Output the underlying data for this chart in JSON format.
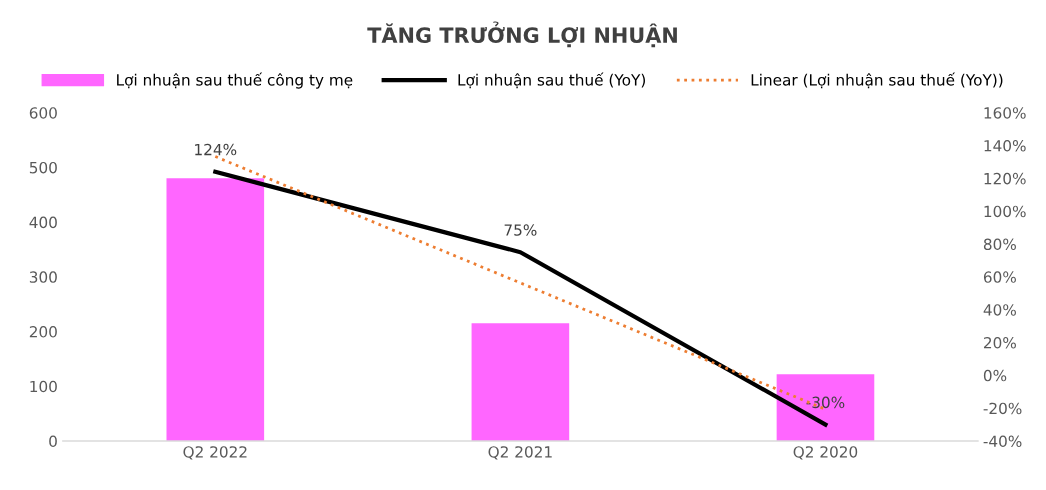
{
  "chart_data": {
    "type": "bar",
    "title": "TĂNG TRƯỞNG LỢI NHUẬN",
    "categories": [
      "Q2 2022",
      "Q2 2021",
      "Q2 2020"
    ],
    "series": [
      {
        "name": "Lợi nhuận sau thuế công ty mẹ",
        "color": "#ff66ff",
        "values": [
          480,
          215,
          122
        ]
      },
      {
        "name": "Lợi nhuận sau thuế (YoY)",
        "type": "line",
        "axis": "y2",
        "color": "#000000",
        "line_style": "solid",
        "values": [
          124,
          75,
          -30
        ],
        "value_labels": [
          "124%",
          "75%",
          "-30%"
        ]
      },
      {
        "name": "Linear (Lợi nhuận sau thuế (YoY))",
        "type": "line",
        "axis": "y2",
        "color": "#ed7d31",
        "line_style": "dotted",
        "values": [
          133.3,
          56.3,
          -20.7
        ]
      }
    ],
    "ylim": [
      0,
      600
    ],
    "yticks": [
      0,
      100,
      200,
      300,
      400,
      500,
      600
    ],
    "y2lim": [
      -40,
      160
    ],
    "y2ticks": [
      {
        "value": -40,
        "label": "-40%"
      },
      {
        "value": -20,
        "label": "-20%"
      },
      {
        "value": 0,
        "label": "0%"
      },
      {
        "value": 20,
        "label": "20%"
      },
      {
        "value": 40,
        "label": "40%"
      },
      {
        "value": 60,
        "label": "60%"
      },
      {
        "value": 80,
        "label": "80%"
      },
      {
        "value": 100,
        "label": "100%"
      },
      {
        "value": 120,
        "label": "120%"
      },
      {
        "value": 140,
        "label": "140%"
      },
      {
        "value": 160,
        "label": "160%"
      }
    ],
    "grid": false,
    "legend": "top"
  }
}
